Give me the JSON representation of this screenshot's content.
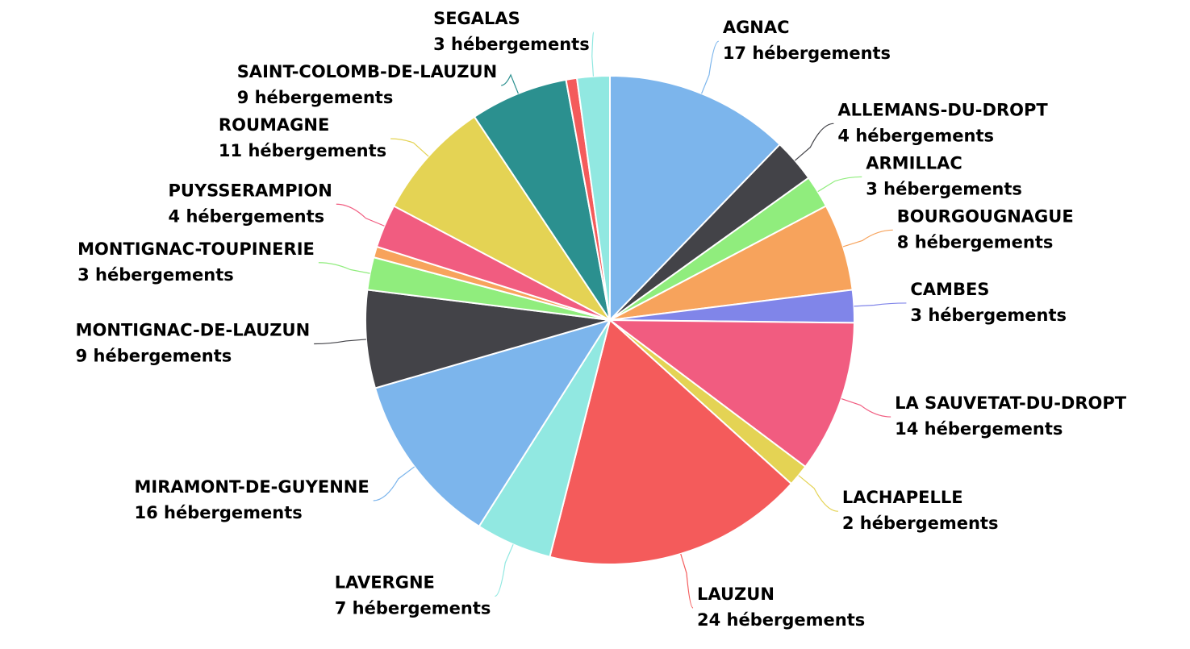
{
  "chart_data": {
    "type": "pie",
    "categories": [
      "AGNAC",
      "ALLEMANS-DU-DROPT",
      "ARMILLAC",
      "BOURGOUGNAGUE",
      "CAMBES",
      "LA SAUVETAT-DU-DROPT",
      "LACHAPELLE",
      "LAUZUN",
      "LAVERGNE",
      "MIRAMONT-DE-GUYENNE",
      "MONTIGNAC-DE-LAUZUN",
      "MONTIGNAC-TOUPINERIE",
      null,
      "PUYSSERAMPION",
      "ROUMAGNE",
      "SAINT-COLOMB-DE-LAUZUN",
      null,
      "SEGALAS"
    ],
    "values": [
      17,
      4,
      3,
      8,
      3,
      14,
      2,
      24,
      7,
      16,
      9,
      3,
      1,
      4,
      11,
      9,
      1,
      3
    ],
    "value_labels": [
      "17 hébergements",
      "4 hébergements",
      "3 hébergements",
      "8 hébergements",
      "3 hébergements",
      "14 hébergements",
      "2 hébergements",
      "24 hébergements",
      "7 hébergements",
      "16 hébergements",
      "9 hébergements",
      "3 hébergements",
      null,
      "4 hébergements",
      "11 hébergements",
      "9 hébergements",
      null,
      "3 hébergements"
    ],
    "colors": [
      "#7cb5ec",
      "#434348",
      "#90ed7d",
      "#f7a35c",
      "#8085e9",
      "#f15c80",
      "#e4d354",
      "#f45b5b",
      "#91e8e1",
      "#7cb5ec",
      "#434348",
      "#90ed7d",
      "#f7a35c",
      "#f15c80",
      "#e4d354",
      "#2b908f",
      "#f45b5b",
      "#91e8e1"
    ]
  }
}
